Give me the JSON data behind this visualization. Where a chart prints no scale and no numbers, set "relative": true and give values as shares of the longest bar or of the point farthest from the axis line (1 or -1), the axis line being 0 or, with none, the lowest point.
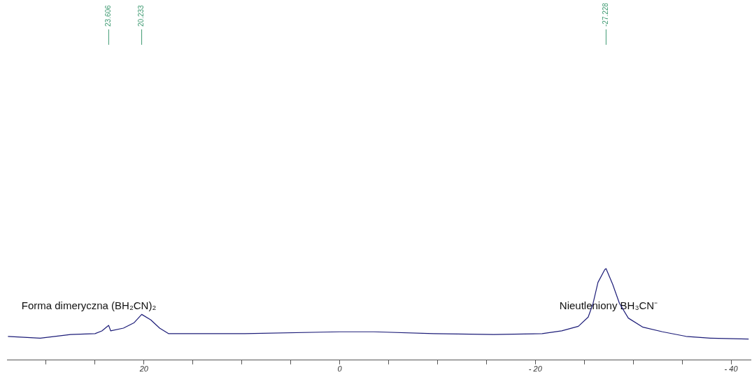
{
  "chart_data": {
    "type": "line",
    "relative": true,
    "color": "#1c1c78",
    "x": [
      33.9,
      30.6,
      27.5,
      25.0,
      24.3,
      23.606,
      23.4,
      22.1,
      21.0,
      20.233,
      19.3,
      18.4,
      17.5,
      15.4,
      9.7,
      0.0,
      -3.5,
      -9.6,
      -15.75,
      -20.7,
      -22.7,
      -24.4,
      -25.4,
      -25.9,
      -26.4,
      -27.1,
      -27.228,
      -27.9,
      -28.6,
      -29.5,
      -31.0,
      -33.0,
      -35.4,
      -37.9,
      -41.8
    ],
    "values": [
      0.26,
      0.24,
      0.28,
      0.29,
      0.32,
      0.38,
      0.32,
      0.35,
      0.41,
      0.5,
      0.44,
      0.35,
      0.29,
      0.29,
      0.29,
      0.31,
      0.31,
      0.29,
      0.28,
      0.29,
      0.32,
      0.37,
      0.47,
      0.62,
      0.85,
      0.99,
      1.0,
      0.83,
      0.62,
      0.46,
      0.36,
      0.31,
      0.26,
      0.24,
      0.23
    ],
    "xlim": [
      34,
      -42
    ],
    "xticks": [
      {
        "value": 30,
        "label": null
      },
      {
        "value": 25,
        "label": null
      },
      20,
      {
        "value": 15,
        "label": null
      },
      {
        "value": 10,
        "label": null
      },
      {
        "value": 5,
        "label": null
      },
      0,
      {
        "value": -5,
        "label": null
      },
      {
        "value": -10,
        "label": null
      },
      {
        "value": -15,
        "label": null
      },
      {
        "value": -20,
        "label": "- 20"
      },
      {
        "value": -25,
        "label": null
      },
      {
        "value": -30,
        "label": null
      },
      {
        "value": -35,
        "label": null
      },
      {
        "value": -40,
        "label": "- 40"
      }
    ],
    "annotations": [
      {
        "text": "23.606",
        "x": 23.606
      },
      {
        "text": "20.233",
        "x": 20.233
      },
      {
        "text": "-27.228",
        "x": -27.228
      },
      "Forma dimeryczna (BH₂CN)₂",
      "Nieutleniony BH₃CN⁻"
    ],
    "grid": false,
    "legend": false,
    "marker": "none",
    "line_style": "solid"
  }
}
